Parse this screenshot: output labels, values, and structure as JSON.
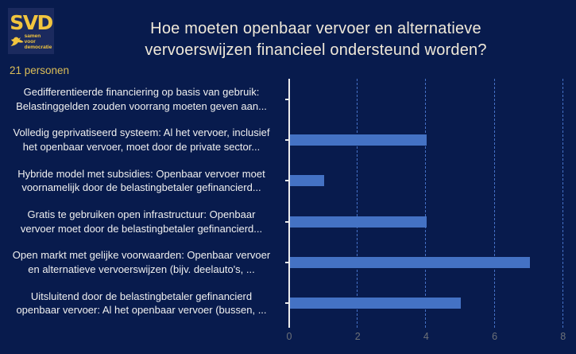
{
  "colors": {
    "background": "#081B4D",
    "logo_background": "#1B2A5E",
    "brand_yellow": "#F2C53E",
    "subtitle_gold": "#DCBE58",
    "title_cream": "#F0E9D9",
    "bar_blue": "#4472C4",
    "gridline_blue": "#4571C6",
    "axis_white": "#ECECEC",
    "tick_gray": "#6D7178",
    "label_white": "#F0F0F0"
  },
  "logo": {
    "acronym": "SVD",
    "tagline_line1": "samen",
    "tagline_line2": "voor",
    "tagline_line3": "democratie"
  },
  "header": {
    "title_line1": "Hoe moeten openbaar vervoer en alternatieve",
    "title_line2": "vervoerswijzen financieel ondersteund worden?",
    "respondents": "21 personen"
  },
  "chart_data": {
    "type": "bar",
    "orientation": "horizontal",
    "title": "Hoe moeten openbaar vervoer en alternatieve vervoerswijzen financieel ondersteund worden?",
    "respondents_count": 21,
    "categories": [
      [
        "Gedifferentieerde financiering op basis van gebruik:",
        "Belastinggelden zouden voorrang moeten geven aan..."
      ],
      [
        "Volledig geprivatiseerd systeem: Al het vervoer, inclusief",
        "het openbaar vervoer, moet door de private sector..."
      ],
      [
        "Hybride model met subsidies: Openbaar vervoer moet",
        "voornamelijk door de belastingbetaler gefinancierd..."
      ],
      [
        "Gratis te gebruiken open infrastructuur: Openbaar",
        "vervoer moet door de belastingbetaler gefinancierd..."
      ],
      [
        "Open markt met gelijke voorwaarden: Openbaar vervoer",
        "en alternatieve vervoerswijzen (bijv. deelauto's, ..."
      ],
      [
        "Uitsluitend door de belastingbetaler gefinancierd",
        "openbaar vervoer: Al het openbaar vervoer (bussen, ..."
      ]
    ],
    "values": [
      0,
      4,
      1,
      4,
      7,
      5
    ],
    "x_ticks": [
      0,
      2,
      4,
      6,
      8
    ],
    "xlim": [
      0,
      8.4
    ],
    "grid": "vertical-dashed",
    "legend": "none"
  }
}
